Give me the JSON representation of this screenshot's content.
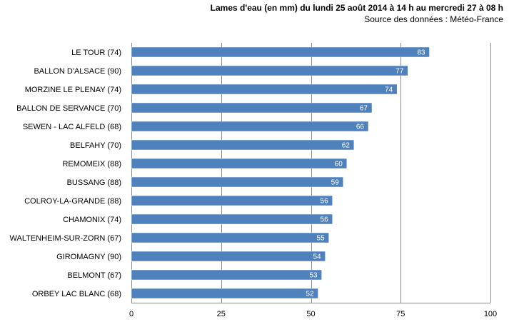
{
  "chart_data": {
    "type": "bar",
    "orientation": "horizontal",
    "title": "Lames d'eau (en mm) du lundi 25 août 2014 à 14 h au mercredi 27 à 08 h",
    "subtitle": "Source des données : Météo-France",
    "xlabel": "",
    "ylabel": "",
    "xlim": [
      0,
      100
    ],
    "xticks": [
      0,
      25,
      50,
      75,
      100
    ],
    "grid": true,
    "legend": "none",
    "bar_color": "#4F81BD",
    "categories": [
      "LE TOUR (74)",
      "BALLON D'ALSACE (90)",
      "MORZINE LE PLENAY (74)",
      "BALLON DE SERVANCE (70)",
      "SEWEN - LAC ALFELD (68)",
      "BELFAHY (70)",
      "REMOMEIX (88)",
      "BUSSANG (88)",
      "COLROY-LA-GRANDE (88)",
      "CHAMONIX (74)",
      "WALTENHEIM-SUR-ZORN (67)",
      "GIROMAGNY (90)",
      "BELMONT (67)",
      "ORBEY LAC BLANC (68)"
    ],
    "values": [
      83,
      77,
      74,
      67,
      66,
      62,
      60,
      59,
      56,
      56,
      55,
      54,
      53,
      52
    ]
  }
}
